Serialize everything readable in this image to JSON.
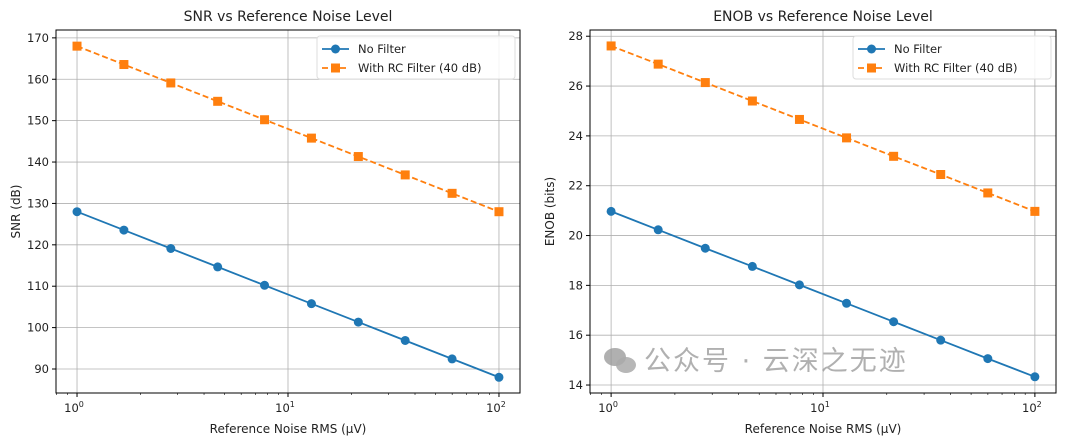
{
  "chart_data": [
    {
      "type": "line",
      "title": "SNR vs Reference Noise Level",
      "xlabel": "Reference Noise RMS (μV)",
      "ylabel": "SNR (dB)",
      "xscale": "log",
      "xlim": [
        0.795,
        125.8
      ],
      "ylim": [
        84.2,
        171.9
      ],
      "xticks": [
        {
          "value": 1,
          "label": "10",
          "exp": "0"
        },
        {
          "value": 10,
          "label": "10",
          "exp": "1"
        },
        {
          "value": 100,
          "label": "10",
          "exp": "2"
        }
      ],
      "yticks": [
        90,
        100,
        110,
        120,
        130,
        140,
        150,
        160,
        170
      ],
      "grid": true,
      "legend": "top-right",
      "x": [
        1,
        1.668,
        2.783,
        4.642,
        7.743,
        12.915,
        21.544,
        35.938,
        59.948,
        100
      ],
      "series": [
        {
          "name": "No Filter",
          "color": "#1f77b4",
          "marker": "circle",
          "linestyle": "solid",
          "values": [
            128,
            123.56,
            119.11,
            114.67,
            110.22,
            105.78,
            101.33,
            96.89,
            92.44,
            88
          ]
        },
        {
          "name": "With RC Filter (40 dB)",
          "color": "#ff7f0e",
          "marker": "square",
          "linestyle": "dashed",
          "values": [
            168,
            163.56,
            159.11,
            154.67,
            150.22,
            145.78,
            141.33,
            136.89,
            132.44,
            128
          ]
        }
      ]
    },
    {
      "type": "line",
      "title": "ENOB vs Reference Noise Level",
      "xlabel": "Reference Noise RMS (μV)",
      "ylabel": "ENOB (bits)",
      "xscale": "log",
      "xlim": [
        0.795,
        125.8
      ],
      "ylim": [
        13.68,
        28.25
      ],
      "xticks": [
        {
          "value": 1,
          "label": "10",
          "exp": "0"
        },
        {
          "value": 10,
          "label": "10",
          "exp": "1"
        },
        {
          "value": 100,
          "label": "10",
          "exp": "2"
        }
      ],
      "yticks": [
        14,
        16,
        18,
        20,
        22,
        24,
        26,
        28
      ],
      "grid": true,
      "legend": "top-right",
      "x": [
        1,
        1.668,
        2.783,
        4.642,
        7.743,
        12.915,
        21.544,
        35.938,
        59.948,
        100
      ],
      "series": [
        {
          "name": "No Filter",
          "color": "#1f77b4",
          "marker": "circle",
          "linestyle": "solid",
          "values": [
            20.97,
            20.23,
            19.49,
            18.76,
            18.02,
            17.28,
            16.54,
            15.8,
            15.06,
            14.33
          ]
        },
        {
          "name": "With RC Filter (40 dB)",
          "color": "#ff7f0e",
          "marker": "square",
          "linestyle": "dashed",
          "values": [
            27.61,
            26.88,
            26.14,
            25.4,
            24.66,
            23.92,
            23.18,
            22.45,
            21.71,
            20.97
          ]
        }
      ]
    }
  ],
  "watermark": "公众号 · 云深之无迹"
}
